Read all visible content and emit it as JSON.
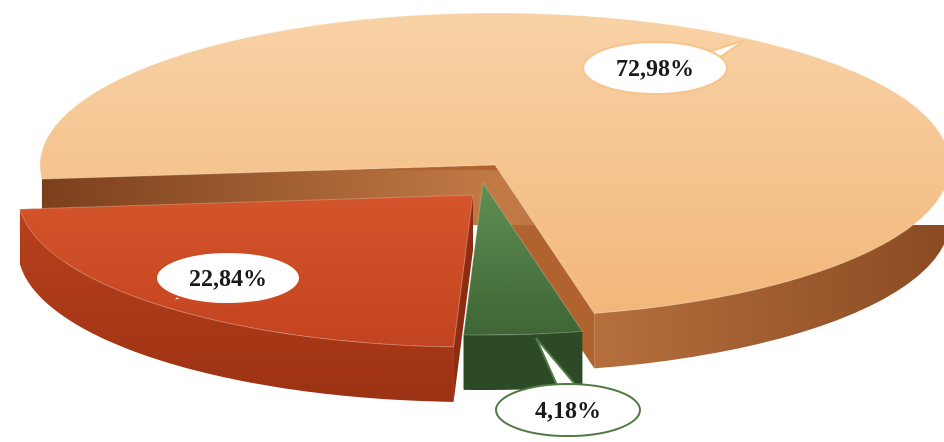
{
  "chart_data": {
    "type": "pie",
    "style": "3d-exploded",
    "title": "",
    "slices": [
      {
        "label": "72,98%",
        "value": 72.98,
        "color": "#f6c48c",
        "side_color": "#b0632e"
      },
      {
        "label": "22,84%",
        "value": 22.84,
        "color": "#cc4a22",
        "side_color": "#8e2c12"
      },
      {
        "label": "4,18%",
        "value": 4.18,
        "color": "#4f7a43",
        "side_color": "#2b4a25"
      }
    ],
    "legend": "none"
  }
}
